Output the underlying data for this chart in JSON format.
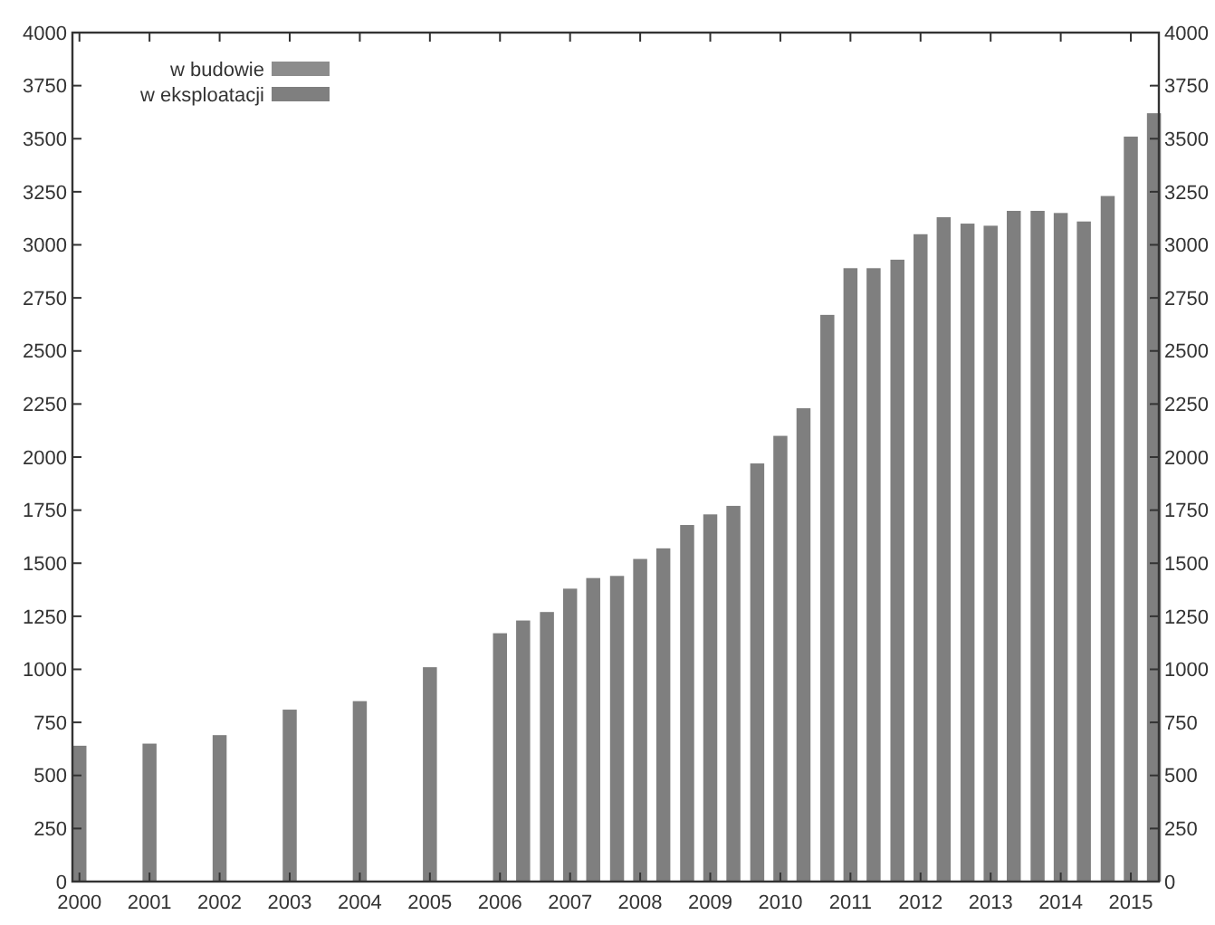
{
  "chart_data": {
    "type": "bar",
    "x": [
      2000,
      2001,
      2002,
      2003,
      2004,
      2005,
      2006,
      2006.33,
      2006.67,
      2007,
      2007.33,
      2007.67,
      2008,
      2008.33,
      2008.67,
      2009,
      2009.33,
      2009.67,
      2010,
      2010.33,
      2010.67,
      2011,
      2011.33,
      2011.67,
      2012,
      2012.33,
      2012.67,
      2013,
      2013.33,
      2013.67,
      2014,
      2014.33,
      2014.67,
      2015,
      2015.33
    ],
    "series": [
      {
        "name": "w eksploatacji",
        "color": "#7f7f7f",
        "values": [
          640,
          650,
          690,
          810,
          850,
          1010,
          1170,
          1230,
          1270,
          1380,
          1430,
          1440,
          1520,
          1570,
          1680,
          1730,
          1770,
          1970,
          2100,
          2230,
          2670,
          2890,
          2890,
          2930,
          3050,
          3130,
          3100,
          3090,
          3160,
          3160,
          3150,
          3110,
          3230,
          3510,
          3620
        ]
      },
      {
        "name": "w budowie",
        "color": "#8c8c8c",
        "values": [
          null,
          null,
          null,
          null,
          null,
          null,
          null,
          null,
          null,
          null,
          null,
          null,
          null,
          null,
          null,
          null,
          null,
          null,
          null,
          null,
          null,
          null,
          null,
          null,
          null,
          null,
          null,
          null,
          null,
          null,
          null,
          null,
          null,
          null,
          null
        ]
      }
    ],
    "xlim": [
      1999.9,
      2015.4
    ],
    "xticks": [
      2000,
      2001,
      2002,
      2003,
      2004,
      2005,
      2006,
      2007,
      2008,
      2009,
      2010,
      2011,
      2012,
      2013,
      2014,
      2015
    ],
    "ylim": [
      0,
      4000
    ],
    "yticks": [
      0,
      250,
      500,
      750,
      1000,
      1250,
      1500,
      1750,
      2000,
      2250,
      2500,
      2750,
      3000,
      3250,
      3500,
      3750,
      4000
    ],
    "y2lim": [
      0,
      4000
    ],
    "y2ticks": [
      0,
      250,
      500,
      750,
      1000,
      1250,
      1500,
      1750,
      2000,
      2250,
      2500,
      2750,
      3000,
      3250,
      3500,
      3750,
      4000
    ],
    "grid": false,
    "legend": "top left"
  }
}
